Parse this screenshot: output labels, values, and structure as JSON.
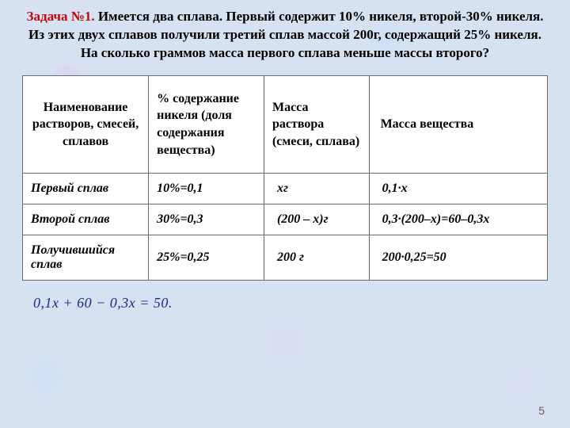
{
  "problem": {
    "lead": "Задача №1.",
    "text": "Имеется два сплава. Первый содержит 10% никеля, второй-30% никеля. Из этих двух сплавов получили третий сплав массой 200г, содержащий 25% никеля. На сколько граммов масса первого сплава меньше массы второго?"
  },
  "table": {
    "headers": {
      "c1": "Наименование растворов, смесей, сплавов",
      "c2": "% содержание никеля (доля содержания вещества)",
      "c3": "Масса раствора (смеси, сплава)",
      "c4": "Масса вещества"
    },
    "rows": [
      {
        "c1": "Первый сплав",
        "c2": "10%=0,1",
        "c3": "хг",
        "c4": "0,1·х"
      },
      {
        "c1": "Второй сплав",
        "c2": "30%=0,3",
        "c3": "(200 – х)г",
        "c4": "0,3·(200–х)=60–0,3х"
      },
      {
        "c1": "Получившийся сплав",
        "c2": "25%=0,25",
        "c3": "200 г",
        "c4": "200·0,25=50"
      }
    ]
  },
  "equation": "0,1x + 60 − 0,3x = 50.",
  "page_number": "5",
  "colors": {
    "background": "#d6e2f2",
    "lead": "#c10808",
    "text": "#000000",
    "equation": "#1a2a8a",
    "table_border": "#6a6a6a",
    "page_num": "#6b5b4b"
  },
  "fonts": {
    "body_family": "Times New Roman",
    "problem_size_pt": 13,
    "cell_size_pt": 12,
    "equation_size_pt": 14
  }
}
